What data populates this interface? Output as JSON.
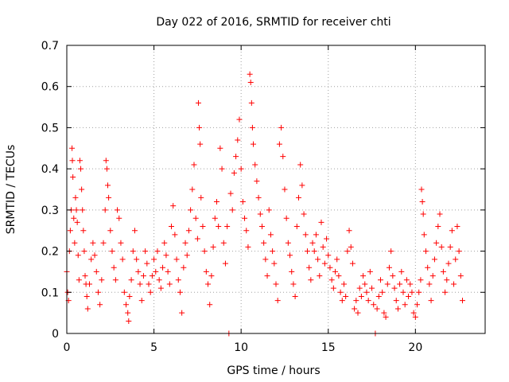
{
  "chart_data": {
    "type": "scatter",
    "title": "Day 022 of 2016, SRMTID for receiver chti",
    "xlabel": "GPS time / hours",
    "ylabel": "SRMTID / TECUs",
    "xlim": [
      0,
      24
    ],
    "ylim": [
      0,
      0.7
    ],
    "xticks": [
      0,
      5,
      10,
      15,
      20
    ],
    "yticks": [
      0,
      0.1,
      0.2,
      0.3,
      0.4,
      0.5,
      0.6,
      0.7
    ],
    "xtick_labels": [
      "0",
      "5",
      "10",
      "15",
      "20"
    ],
    "ytick_labels": [
      "0",
      "0.1",
      "0.2",
      "0.3",
      "0.4",
      "0.5",
      "0.6",
      "0.7"
    ],
    "grid": true,
    "marker": "+",
    "color": "#ff0000",
    "series": [
      {
        "name": "SRMTID",
        "points": [
          [
            0.0,
            0.15
          ],
          [
            0.05,
            0.1
          ],
          [
            0.1,
            0.08
          ],
          [
            0.15,
            0.2
          ],
          [
            0.2,
            0.25
          ],
          [
            0.25,
            0.3
          ],
          [
            0.3,
            0.45
          ],
          [
            0.32,
            0.42
          ],
          [
            0.35,
            0.38
          ],
          [
            0.4,
            0.28
          ],
          [
            0.45,
            0.22
          ],
          [
            0.5,
            0.33
          ],
          [
            0.55,
            0.3
          ],
          [
            0.6,
            0.27
          ],
          [
            0.65,
            0.19
          ],
          [
            0.7,
            0.13
          ],
          [
            0.75,
            0.42
          ],
          [
            0.8,
            0.4
          ],
          [
            0.85,
            0.35
          ],
          [
            0.9,
            0.3
          ],
          [
            0.95,
            0.25
          ],
          [
            1.0,
            0.2
          ],
          [
            1.05,
            0.14
          ],
          [
            1.1,
            0.12
          ],
          [
            1.15,
            0.09
          ],
          [
            1.2,
            0.06
          ],
          [
            1.3,
            0.12
          ],
          [
            1.4,
            0.18
          ],
          [
            1.5,
            0.22
          ],
          [
            1.6,
            0.19
          ],
          [
            1.7,
            0.15
          ],
          [
            1.8,
            0.1
          ],
          [
            1.9,
            0.07
          ],
          [
            2.0,
            0.13
          ],
          [
            2.1,
            0.22
          ],
          [
            2.2,
            0.3
          ],
          [
            2.25,
            0.42
          ],
          [
            2.3,
            0.4
          ],
          [
            2.35,
            0.36
          ],
          [
            2.4,
            0.33
          ],
          [
            2.5,
            0.25
          ],
          [
            2.6,
            0.2
          ],
          [
            2.7,
            0.16
          ],
          [
            2.8,
            0.13
          ],
          [
            2.9,
            0.3
          ],
          [
            3.0,
            0.28
          ],
          [
            3.1,
            0.22
          ],
          [
            3.2,
            0.18
          ],
          [
            3.3,
            0.1
          ],
          [
            3.4,
            0.07
          ],
          [
            3.5,
            0.05
          ],
          [
            3.55,
            0.03
          ],
          [
            3.6,
            0.09
          ],
          [
            3.7,
            0.13
          ],
          [
            3.8,
            0.2
          ],
          [
            3.9,
            0.25
          ],
          [
            4.0,
            0.18
          ],
          [
            4.1,
            0.15
          ],
          [
            4.2,
            0.12
          ],
          [
            4.3,
            0.08
          ],
          [
            4.4,
            0.14
          ],
          [
            4.5,
            0.2
          ],
          [
            4.6,
            0.17
          ],
          [
            4.7,
            0.12
          ],
          [
            4.8,
            0.1
          ],
          [
            4.9,
            0.14
          ],
          [
            5.0,
            0.18
          ],
          [
            5.1,
            0.15
          ],
          [
            5.2,
            0.2
          ],
          [
            5.3,
            0.13
          ],
          [
            5.4,
            0.11
          ],
          [
            5.5,
            0.16
          ],
          [
            5.6,
            0.22
          ],
          [
            5.7,
            0.19
          ],
          [
            5.8,
            0.15
          ],
          [
            5.9,
            0.12
          ],
          [
            6.0,
            0.26
          ],
          [
            6.1,
            0.31
          ],
          [
            6.2,
            0.24
          ],
          [
            6.3,
            0.18
          ],
          [
            6.4,
            0.13
          ],
          [
            6.5,
            0.1
          ],
          [
            6.6,
            0.05
          ],
          [
            6.7,
            0.16
          ],
          [
            6.8,
            0.22
          ],
          [
            6.9,
            0.19
          ],
          [
            7.0,
            0.25
          ],
          [
            7.1,
            0.3
          ],
          [
            7.2,
            0.35
          ],
          [
            7.3,
            0.41
          ],
          [
            7.4,
            0.28
          ],
          [
            7.5,
            0.23
          ],
          [
            7.55,
            0.56
          ],
          [
            7.6,
            0.5
          ],
          [
            7.65,
            0.46
          ],
          [
            7.7,
            0.33
          ],
          [
            7.8,
            0.26
          ],
          [
            7.9,
            0.2
          ],
          [
            8.0,
            0.15
          ],
          [
            8.1,
            0.12
          ],
          [
            8.2,
            0.07
          ],
          [
            8.3,
            0.14
          ],
          [
            8.4,
            0.21
          ],
          [
            8.5,
            0.28
          ],
          [
            8.6,
            0.32
          ],
          [
            8.7,
            0.26
          ],
          [
            8.8,
            0.45
          ],
          [
            8.9,
            0.4
          ],
          [
            9.0,
            0.22
          ],
          [
            9.1,
            0.17
          ],
          [
            9.2,
            0.26
          ],
          [
            9.3,
            0.0
          ],
          [
            9.4,
            0.34
          ],
          [
            9.5,
            0.3
          ],
          [
            9.6,
            0.39
          ],
          [
            9.7,
            0.43
          ],
          [
            9.8,
            0.47
          ],
          [
            9.9,
            0.52
          ],
          [
            10.0,
            0.4
          ],
          [
            10.1,
            0.32
          ],
          [
            10.2,
            0.28
          ],
          [
            10.3,
            0.25
          ],
          [
            10.4,
            0.21
          ],
          [
            10.5,
            0.63
          ],
          [
            10.55,
            0.61
          ],
          [
            10.6,
            0.56
          ],
          [
            10.65,
            0.5
          ],
          [
            10.7,
            0.46
          ],
          [
            10.8,
            0.41
          ],
          [
            10.9,
            0.37
          ],
          [
            11.0,
            0.33
          ],
          [
            11.1,
            0.29
          ],
          [
            11.2,
            0.26
          ],
          [
            11.3,
            0.22
          ],
          [
            11.4,
            0.18
          ],
          [
            11.5,
            0.14
          ],
          [
            11.6,
            0.3
          ],
          [
            11.7,
            0.24
          ],
          [
            11.8,
            0.2
          ],
          [
            11.9,
            0.17
          ],
          [
            12.0,
            0.12
          ],
          [
            12.1,
            0.08
          ],
          [
            12.2,
            0.46
          ],
          [
            12.3,
            0.5
          ],
          [
            12.4,
            0.43
          ],
          [
            12.5,
            0.35
          ],
          [
            12.6,
            0.28
          ],
          [
            12.7,
            0.22
          ],
          [
            12.8,
            0.19
          ],
          [
            12.9,
            0.15
          ],
          [
            13.0,
            0.12
          ],
          [
            13.1,
            0.09
          ],
          [
            13.2,
            0.26
          ],
          [
            13.3,
            0.33
          ],
          [
            13.4,
            0.41
          ],
          [
            13.5,
            0.36
          ],
          [
            13.6,
            0.29
          ],
          [
            13.7,
            0.24
          ],
          [
            13.8,
            0.2
          ],
          [
            13.9,
            0.16
          ],
          [
            14.0,
            0.13
          ],
          [
            14.1,
            0.22
          ],
          [
            14.2,
            0.2
          ],
          [
            14.3,
            0.24
          ],
          [
            14.4,
            0.18
          ],
          [
            14.5,
            0.14
          ],
          [
            14.6,
            0.27
          ],
          [
            14.7,
            0.21
          ],
          [
            14.8,
            0.17
          ],
          [
            14.9,
            0.23
          ],
          [
            15.0,
            0.19
          ],
          [
            15.1,
            0.16
          ],
          [
            15.2,
            0.13
          ],
          [
            15.3,
            0.11
          ],
          [
            15.4,
            0.15
          ],
          [
            15.5,
            0.18
          ],
          [
            15.6,
            0.14
          ],
          [
            15.7,
            0.1
          ],
          [
            15.8,
            0.08
          ],
          [
            15.9,
            0.12
          ],
          [
            16.0,
            0.09
          ],
          [
            16.1,
            0.2
          ],
          [
            16.2,
            0.25
          ],
          [
            16.3,
            0.21
          ],
          [
            16.4,
            0.17
          ],
          [
            16.5,
            0.06
          ],
          [
            16.6,
            0.08
          ],
          [
            16.7,
            0.05
          ],
          [
            16.8,
            0.11
          ],
          [
            16.9,
            0.09
          ],
          [
            17.0,
            0.14
          ],
          [
            17.1,
            0.12
          ],
          [
            17.2,
            0.1
          ],
          [
            17.3,
            0.08
          ],
          [
            17.4,
            0.15
          ],
          [
            17.5,
            0.11
          ],
          [
            17.6,
            0.07
          ],
          [
            17.7,
            0.0
          ],
          [
            17.8,
            0.06
          ],
          [
            17.9,
            0.09
          ],
          [
            18.0,
            0.13
          ],
          [
            18.1,
            0.1
          ],
          [
            18.2,
            0.05
          ],
          [
            18.3,
            0.04
          ],
          [
            18.4,
            0.12
          ],
          [
            18.5,
            0.16
          ],
          [
            18.6,
            0.2
          ],
          [
            18.7,
            0.14
          ],
          [
            18.8,
            0.11
          ],
          [
            18.9,
            0.08
          ],
          [
            19.0,
            0.06
          ],
          [
            19.1,
            0.12
          ],
          [
            19.2,
            0.15
          ],
          [
            19.3,
            0.1
          ],
          [
            19.4,
            0.07
          ],
          [
            19.5,
            0.13
          ],
          [
            19.6,
            0.09
          ],
          [
            19.7,
            0.12
          ],
          [
            19.8,
            0.1
          ],
          [
            19.9,
            0.05
          ],
          [
            20.0,
            0.04
          ],
          [
            20.1,
            0.07
          ],
          [
            20.2,
            0.1
          ],
          [
            20.3,
            0.13
          ],
          [
            20.35,
            0.35
          ],
          [
            20.4,
            0.32
          ],
          [
            20.45,
            0.29
          ],
          [
            20.5,
            0.24
          ],
          [
            20.6,
            0.2
          ],
          [
            20.7,
            0.16
          ],
          [
            20.8,
            0.12
          ],
          [
            20.9,
            0.08
          ],
          [
            21.0,
            0.14
          ],
          [
            21.1,
            0.18
          ],
          [
            21.2,
            0.22
          ],
          [
            21.3,
            0.26
          ],
          [
            21.4,
            0.29
          ],
          [
            21.5,
            0.21
          ],
          [
            21.6,
            0.15
          ],
          [
            21.7,
            0.1
          ],
          [
            21.8,
            0.13
          ],
          [
            21.9,
            0.17
          ],
          [
            22.0,
            0.21
          ],
          [
            22.1,
            0.25
          ],
          [
            22.2,
            0.12
          ],
          [
            22.3,
            0.18
          ],
          [
            22.4,
            0.26
          ],
          [
            22.5,
            0.2
          ],
          [
            22.6,
            0.14
          ],
          [
            22.7,
            0.08
          ]
        ]
      }
    ]
  }
}
